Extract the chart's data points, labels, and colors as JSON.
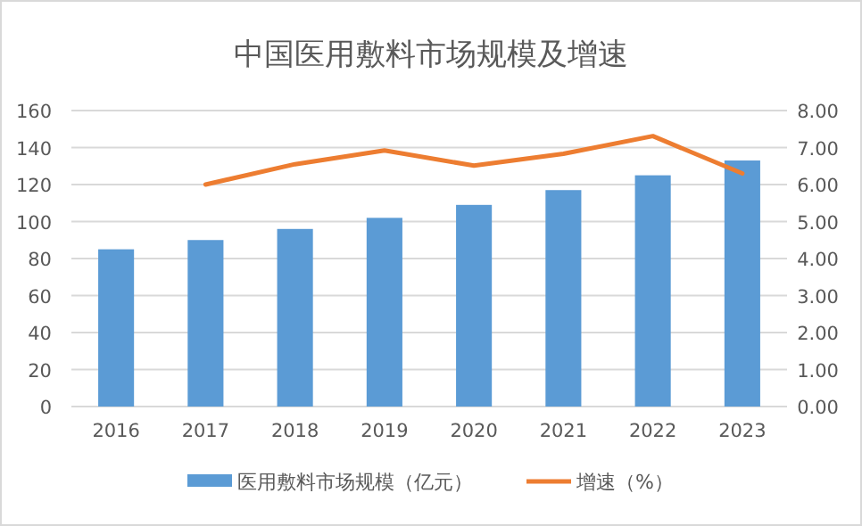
{
  "chart_data": {
    "type": "bar",
    "title": "中国医用敷料市场规模及增速",
    "categories": [
      "2016",
      "2017",
      "2018",
      "2019",
      "2020",
      "2021",
      "2022",
      "2023"
    ],
    "series": [
      {
        "name": "医用敷料市场规模（亿元）",
        "color": "#5b9bd5",
        "values": [
          85,
          90,
          96,
          102,
          109,
          117,
          125,
          133
        ]
      },
      {
        "name": "增速（%）",
        "type": "line",
        "axis": "y2",
        "color": "#ed7d31",
        "values": [
          null,
          6.0,
          6.55,
          6.92,
          6.51,
          6.83,
          7.31,
          6.3
        ]
      }
    ],
    "ylim": [
      0,
      160
    ],
    "yticks": [
      0,
      20,
      40,
      60,
      80,
      100,
      120,
      140,
      160
    ],
    "y2lim": [
      0,
      8
    ],
    "y2ticks": [
      {
        "value": 0,
        "label": "0.00"
      },
      {
        "value": 1,
        "label": "1.00"
      },
      {
        "value": 2,
        "label": "2.00"
      },
      {
        "value": 3,
        "label": "3.00"
      },
      {
        "value": 4,
        "label": "4.00"
      },
      {
        "value": 5,
        "label": "5.00"
      },
      {
        "value": 6,
        "label": "6.00"
      },
      {
        "value": 7,
        "label": "7.00"
      },
      {
        "value": 8,
        "label": "8.00"
      }
    ],
    "grid": "y",
    "legend": "bottom"
  }
}
